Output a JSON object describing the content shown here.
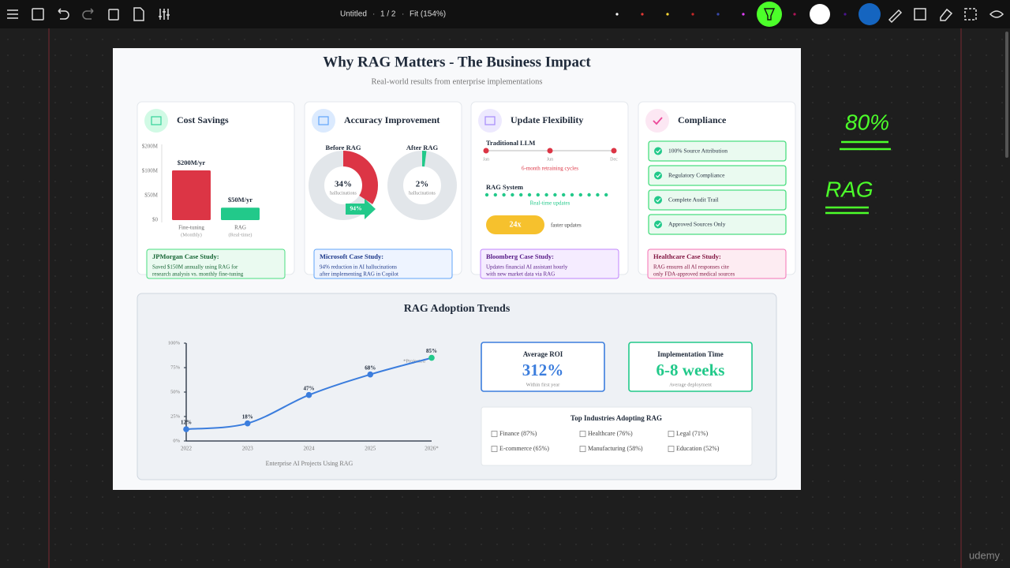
{
  "toolbar": {
    "doc_title": "Untitled",
    "page": "1 / 2",
    "zoom": "Fit (154%)"
  },
  "slide": {
    "title": "Why RAG Matters - The Business Impact",
    "subtitle": "Real-world results from enterprise implementations",
    "cost_card": {
      "title": "Cost Savings",
      "y_labels": [
        "$200M",
        "$100M",
        "$50M",
        "$0"
      ],
      "bars": [
        {
          "category": "Fine-tuning",
          "note": "(Monthly)",
          "value": 200,
          "value_label": "$200M/yr"
        },
        {
          "category": "RAG",
          "note": "(Real-time)",
          "value": 50,
          "value_label": "$50M/yr"
        }
      ],
      "case_title": "JPMorgan Case Study:",
      "case_lines": [
        "Saved $150M annually using RAG for",
        "research analysis vs. monthly fine-tuning"
      ]
    },
    "accuracy_card": {
      "title": "Accuracy Improvement",
      "donuts": [
        {
          "label": "Before RAG",
          "value": 34,
          "value_label": "34%",
          "caption": "hallucinations"
        },
        {
          "label": "After RAG",
          "value": 2,
          "value_label": "2%",
          "caption": "hallucinations"
        }
      ],
      "reduction_label": "94%",
      "case_title": "Microsoft Case Study:",
      "case_lines": [
        "94% reduction in AI hallucinations",
        "after implementing RAG in Copilot"
      ]
    },
    "update_card": {
      "title": "Update Flexibility",
      "traditional_label": "Traditional LLM",
      "months": [
        "Jan",
        "Jun",
        "Dec"
      ],
      "traditional_caption": "6-month retraining cycles",
      "rag_label": "RAG System",
      "rag_caption": "Real-time updates",
      "speed": "24x",
      "speed_caption": "faster updates",
      "case_title": "Bloomberg Case Study:",
      "case_lines": [
        "Updates financial AI assistant hourly",
        "with new market data via RAG"
      ]
    },
    "compliance_card": {
      "title": "Compliance",
      "items": [
        "100% Source Attribution",
        "Regulatory Compliance",
        "Complete Audit Trail",
        "Approved Sources Only"
      ],
      "case_title": "Healthcare Case Study:",
      "case_lines": [
        "RAG ensures all AI responses cite",
        "only FDA-approved medical sources"
      ]
    },
    "trends": {
      "title": "RAG Adoption Trends",
      "chart": {
        "type": "line",
        "x": [
          "2022",
          "2023",
          "2024",
          "2025",
          "2026*"
        ],
        "values": [
          12,
          18,
          47,
          68,
          85
        ],
        "value_labels": [
          "12%",
          "18%",
          "47%",
          "68%",
          "85%"
        ],
        "ylim": [
          0,
          100
        ],
        "yticks": [
          {
            "value": 0,
            "label": "0%"
          },
          {
            "value": 25,
            "label": "25%"
          },
          {
            "value": 50,
            "label": "50%"
          },
          {
            "value": 75,
            "label": "75%"
          },
          {
            "value": 100,
            "label": "100%"
          }
        ],
        "x_label": "Enterprise AI Projects Using RAG",
        "note": "*Projected"
      },
      "stats": [
        {
          "title": "Average ROI",
          "value": "312%",
          "caption": "Within first year"
        },
        {
          "title": "Implementation Time",
          "value": "6-8 weeks",
          "caption": "Average deployment"
        }
      ],
      "industries": {
        "title": "Top Industries Adopting RAG",
        "items": [
          "Finance (87%)",
          "Healthcare (76%)",
          "Legal (71%)",
          "E-commerce (65%)",
          "Manufacturing (58%)",
          "Education (52%)"
        ]
      }
    }
  },
  "annotations": [
    "80%",
    "RAG"
  ],
  "watermark": "udemy"
}
